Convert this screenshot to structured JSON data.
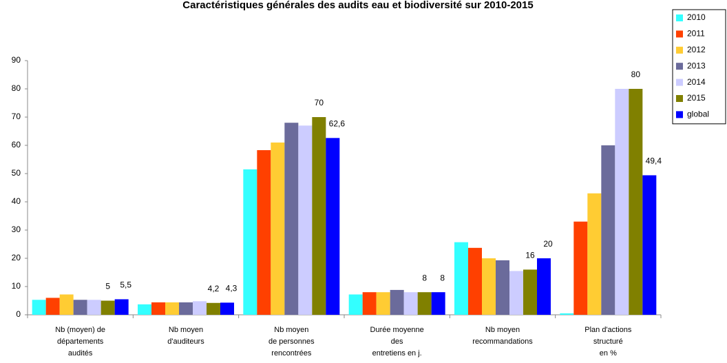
{
  "chart_data": {
    "type": "bar",
    "title": "Caractéristiques générales des audits eau et biodiversité sur 2010-2015",
    "categories": [
      [
        "Nb (moyen) de",
        "départements",
        "audités"
      ],
      [
        "Nb moyen",
        "d'auditeurs"
      ],
      [
        "Nb moyen",
        "de personnes",
        "rencontrées"
      ],
      [
        "Durée moyenne",
        "des",
        "entretiens  en j."
      ],
      [
        "Nb moyen",
        "recommandations"
      ],
      [
        "Plan d'actions",
        "structuré",
        "en %"
      ]
    ],
    "series": [
      {
        "name": "2010",
        "color": "#33ffff",
        "values": [
          5.3,
          3.7,
          51.5,
          7.2,
          25.7,
          0.5
        ]
      },
      {
        "name": "2011",
        "color": "#ff4000",
        "values": [
          6,
          4.4,
          58.3,
          8,
          23.7,
          33
        ]
      },
      {
        "name": "2012",
        "color": "#ffcc33",
        "values": [
          7.2,
          4.4,
          61,
          8,
          20,
          43
        ]
      },
      {
        "name": "2013",
        "color": "#6b6b9b",
        "values": [
          5.3,
          4.4,
          68,
          8.8,
          19.3,
          60
        ]
      },
      {
        "name": "2014",
        "color": "#ccccff",
        "values": [
          5.3,
          4.8,
          67,
          8,
          15.5,
          80
        ]
      },
      {
        "name": "2015",
        "color": "#808000",
        "values": [
          5,
          4.2,
          70,
          8,
          16,
          80
        ],
        "value_labels": [
          "5",
          "4,2",
          "70",
          "8",
          "16",
          "80"
        ]
      },
      {
        "name": "global",
        "color": "#0000ff",
        "values": [
          5.5,
          4.3,
          62.6,
          8,
          20,
          49.4
        ],
        "value_labels": [
          "5,5",
          "4,3",
          "62,6",
          "8",
          "20",
          "49,4"
        ]
      }
    ],
    "ylim": [
      0,
      90
    ],
    "yticks": [
      0,
      10,
      20,
      30,
      40,
      50,
      60,
      70,
      80,
      90
    ],
    "grid": false,
    "legend": "top-right"
  }
}
